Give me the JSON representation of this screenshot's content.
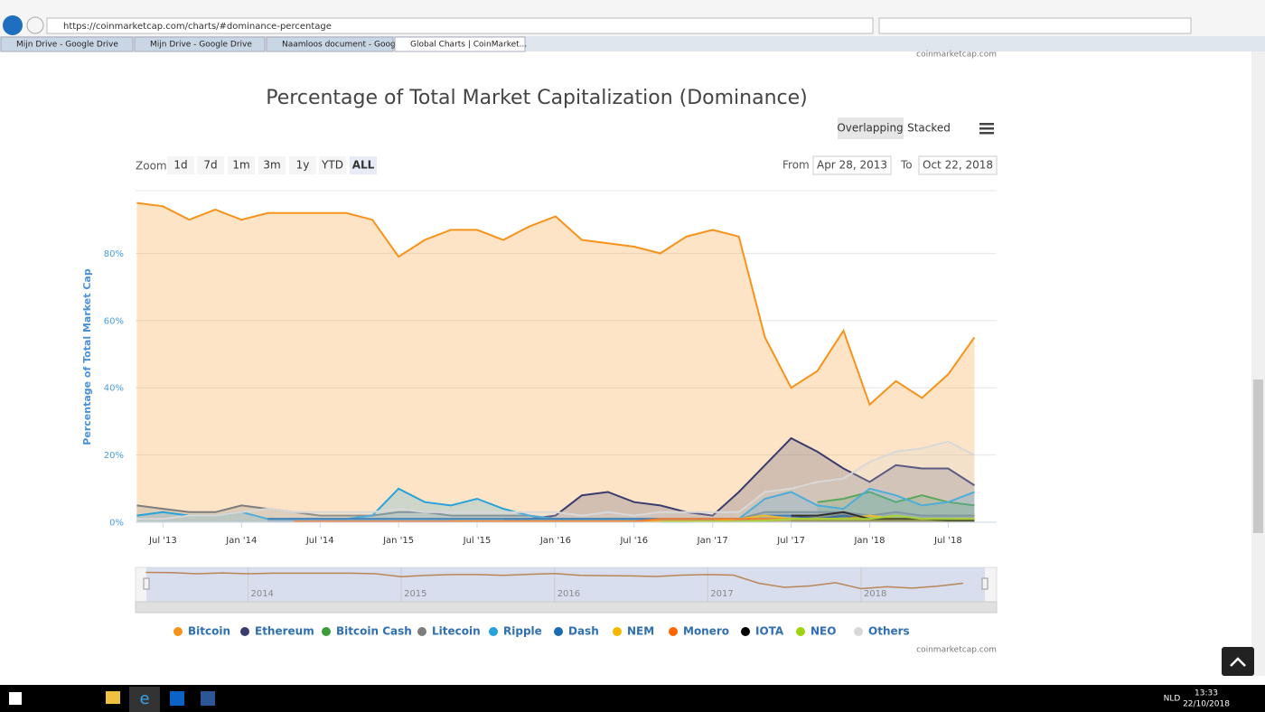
{
  "browser": {
    "url": "https://coinmarketcap.com/charts/#dominance-percentage",
    "tabs": [
      "Mijn Drive - Google Drive",
      "Mijn Drive - Google Drive",
      "Naamloos document - Google...",
      "Global Charts | CoinMarket..."
    ]
  },
  "page": {
    "credit_top": "coinmarketcap.com",
    "credit_bottom": "coinmarketcap.com"
  },
  "controls": {
    "modes": [
      "Overlapping",
      "Stacked"
    ],
    "zoom_label": "Zoom",
    "zoom": [
      "1d",
      "7d",
      "1m",
      "3m",
      "1y",
      "YTD",
      "ALL"
    ],
    "from_label": "From",
    "from": "Apr 28, 2013",
    "to_label": "To",
    "to": "Oct 22, 2018"
  },
  "chart_data": {
    "type": "area",
    "title": "Percentage of Total Market Capitalization (Dominance)",
    "y_label": "Percentage of Total Market Cap",
    "x": [
      "2013-05",
      "2013-07",
      "2013-09",
      "2013-11",
      "2014-01",
      "2014-03",
      "2014-05",
      "2014-07",
      "2014-09",
      "2014-11",
      "2015-01",
      "2015-03",
      "2015-05",
      "2015-07",
      "2015-09",
      "2015-11",
      "2016-01",
      "2016-03",
      "2016-05",
      "2016-07",
      "2016-09",
      "2016-11",
      "2017-01",
      "2017-03",
      "2017-05",
      "2017-07",
      "2017-09",
      "2017-11",
      "2018-01",
      "2018-03",
      "2018-05",
      "2018-07",
      "2018-09"
    ],
    "xlim": [
      "2013-04-28",
      "2018-10-22"
    ],
    "xticks": [
      {
        "value": "2013-07",
        "label": "Jul '13"
      },
      {
        "value": "2014-01",
        "label": "Jan '14"
      },
      {
        "value": "2014-07",
        "label": "Jul '14"
      },
      {
        "value": "2015-01",
        "label": "Jan '15"
      },
      {
        "value": "2015-07",
        "label": "Jul '15"
      },
      {
        "value": "2016-01",
        "label": "Jan '16"
      },
      {
        "value": "2016-07",
        "label": "Jul '16"
      },
      {
        "value": "2017-01",
        "label": "Jan '17"
      },
      {
        "value": "2017-07",
        "label": "Jul '17"
      },
      {
        "value": "2018-01",
        "label": "Jan '18"
      },
      {
        "value": "2018-07",
        "label": "Jul '18"
      }
    ],
    "ylim": [
      0,
      100
    ],
    "yticks": [
      {
        "value": 0,
        "label": "0%"
      },
      {
        "value": 20,
        "label": "20%"
      },
      {
        "value": 40,
        "label": "40%"
      },
      {
        "value": 60,
        "label": "60%"
      },
      {
        "value": 80,
        "label": "80%"
      }
    ],
    "grid": true,
    "series": [
      {
        "name": "Bitcoin",
        "color": "#f7931a",
        "values": [
          95,
          94,
          90,
          93,
          90,
          92,
          92,
          92,
          92,
          90,
          79,
          84,
          87,
          87,
          84,
          88,
          91,
          84,
          83,
          82,
          80,
          85,
          87,
          85,
          55,
          40,
          45,
          57,
          35,
          42,
          37,
          44,
          55
        ]
      },
      {
        "name": "Ethereum",
        "color": "#3b3c6e",
        "values": [
          null,
          null,
          null,
          null,
          null,
          null,
          null,
          null,
          null,
          null,
          null,
          null,
          null,
          null,
          1,
          1,
          2,
          8,
          9,
          6,
          5,
          3,
          2,
          9,
          17,
          25,
          21,
          16,
          12,
          17,
          16,
          16,
          11
        ]
      },
      {
        "name": "Bitcoin Cash",
        "color": "#3a9c3a",
        "values": [
          null,
          null,
          null,
          null,
          null,
          null,
          null,
          null,
          null,
          null,
          null,
          null,
          null,
          null,
          null,
          null,
          null,
          null,
          null,
          null,
          null,
          null,
          null,
          null,
          null,
          null,
          6,
          7,
          9,
          6,
          8,
          6,
          5
        ]
      },
      {
        "name": "Litecoin",
        "color": "#7d7d7d",
        "values": [
          5,
          4,
          3,
          3,
          5,
          4,
          3,
          2,
          2,
          2,
          3,
          3,
          2,
          2,
          2,
          2,
          1,
          1,
          1,
          1,
          1,
          1,
          1,
          1,
          3,
          3,
          3,
          3,
          2,
          3,
          2,
          2,
          2
        ]
      },
      {
        "name": "Ripple",
        "color": "#27a2db",
        "values": [
          2,
          3,
          2,
          2,
          3,
          1,
          1,
          1,
          1,
          2,
          10,
          6,
          5,
          7,
          4,
          2,
          1,
          1,
          1,
          1,
          1,
          1,
          1,
          1,
          7,
          9,
          5,
          4,
          10,
          8,
          5,
          6,
          9
        ]
      },
      {
        "name": "Dash",
        "color": "#1a6bb0",
        "values": [
          null,
          null,
          null,
          null,
          null,
          1,
          1,
          1,
          1,
          1,
          1,
          1,
          1,
          1,
          1,
          1,
          1,
          1,
          1,
          1,
          1,
          1,
          1,
          1,
          2,
          2,
          1,
          2,
          1,
          1,
          1,
          1,
          1
        ]
      },
      {
        "name": "NEM",
        "color": "#f5b800",
        "values": [
          null,
          null,
          null,
          null,
          null,
          null,
          null,
          null,
          null,
          null,
          null,
          null,
          0.3,
          0.3,
          0.3,
          0.3,
          0.3,
          0.3,
          0.3,
          0.3,
          0.3,
          0.3,
          0.3,
          1,
          2,
          1,
          1,
          1,
          2,
          1,
          1,
          0.5,
          0.5
        ]
      },
      {
        "name": "Monero",
        "color": "#ff6600",
        "values": [
          null,
          null,
          null,
          null,
          null,
          null,
          0.2,
          0.2,
          0.2,
          0.2,
          0.2,
          0.2,
          0.2,
          0.2,
          0.2,
          0.2,
          0.2,
          0.2,
          0.2,
          0.2,
          1,
          1,
          1,
          1,
          1,
          1,
          1,
          1,
          1,
          1,
          1,
          1,
          1
        ]
      },
      {
        "name": "IOTA",
        "color": "#000000",
        "values": [
          null,
          null,
          null,
          null,
          null,
          null,
          null,
          null,
          null,
          null,
          null,
          null,
          null,
          null,
          null,
          null,
          null,
          null,
          null,
          null,
          null,
          null,
          null,
          null,
          null,
          2,
          2,
          3,
          1,
          1,
          1,
          0.5,
          0.5
        ]
      },
      {
        "name": "NEO",
        "color": "#9cd40e",
        "values": [
          null,
          null,
          null,
          null,
          null,
          null,
          null,
          null,
          null,
          null,
          null,
          null,
          null,
          null,
          null,
          null,
          null,
          null,
          null,
          null,
          0.1,
          0.1,
          0.2,
          0.2,
          0.5,
          1,
          1,
          1,
          1,
          2,
          1,
          1,
          1
        ]
      },
      {
        "name": "Others",
        "color": "#d8d8d8",
        "values": [
          1,
          1,
          2,
          2,
          3,
          4,
          3,
          3,
          3,
          3,
          4,
          3,
          3,
          3,
          3,
          3,
          3,
          2,
          3,
          2,
          3,
          3,
          3,
          3,
          9,
          10,
          12,
          13,
          18,
          21,
          22,
          24,
          20
        ]
      }
    ],
    "legend": "bottom",
    "navigator_labels": [
      {
        "value": "2014-01",
        "label": "2014"
      },
      {
        "value": "2015-01",
        "label": "2015"
      },
      {
        "value": "2016-01",
        "label": "2016"
      },
      {
        "value": "2017-01",
        "label": "2017"
      },
      {
        "value": "2018-01",
        "label": "2018"
      }
    ]
  },
  "taskbar": {
    "language": "NLD",
    "time": "13:33",
    "date": "22/10/2018"
  }
}
